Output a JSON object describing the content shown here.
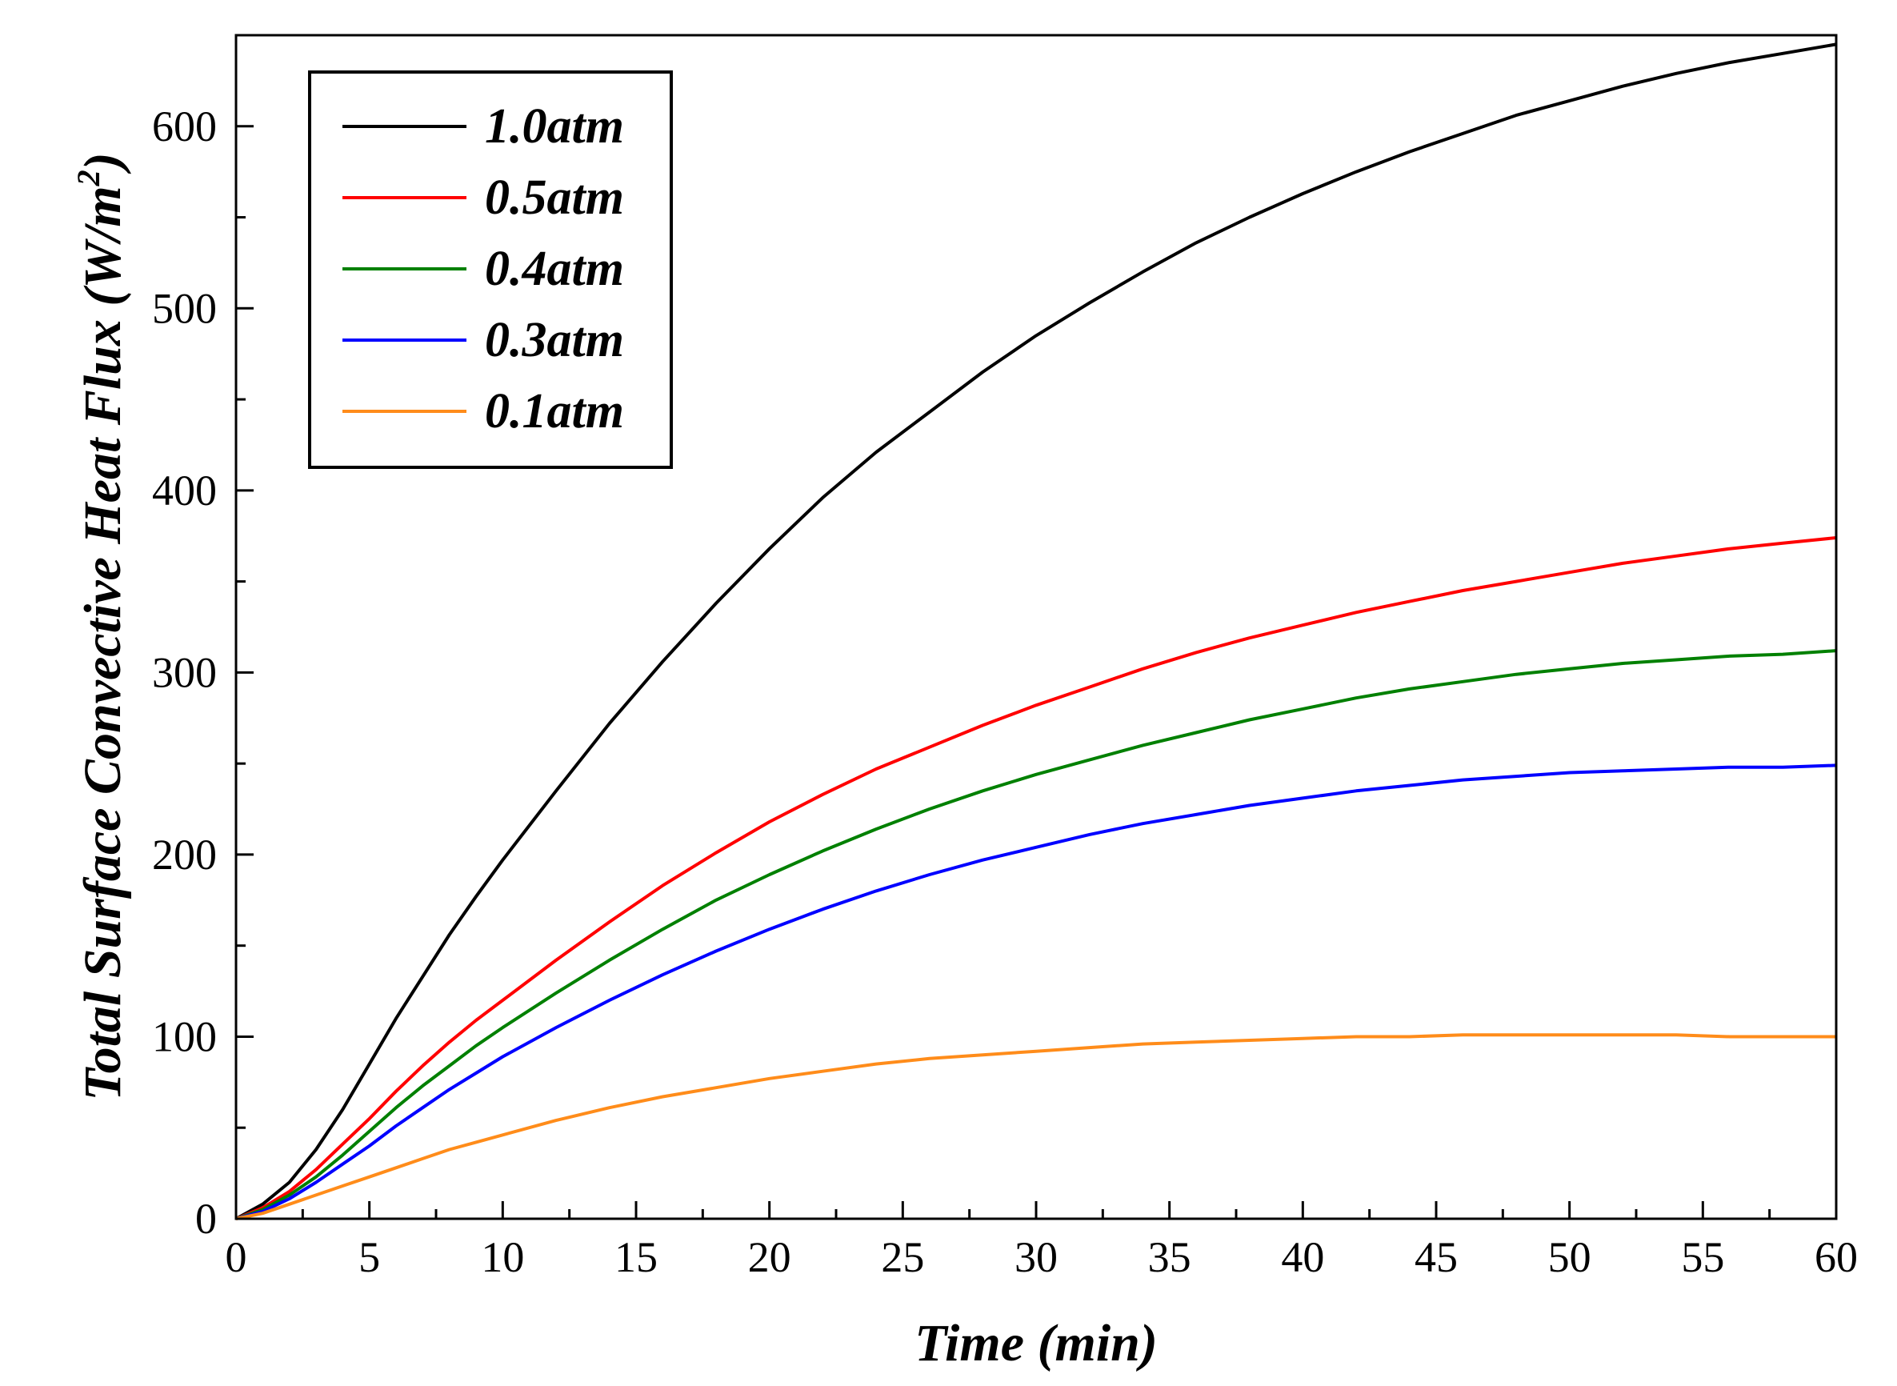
{
  "chart_data": {
    "type": "line",
    "title": "",
    "xlabel": "Time (min)",
    "ylabel_main": "Total Surface Convective Heat Flux (W/m",
    "ylabel_sup": "2",
    "ylabel_close": ")",
    "xlim": [
      0,
      60
    ],
    "ylim": [
      0,
      650
    ],
    "xticks": [
      0,
      5,
      10,
      15,
      20,
      25,
      30,
      35,
      40,
      45,
      50,
      55,
      60
    ],
    "xtick_labels": [
      "0",
      "5",
      "10",
      "15",
      "20",
      "25",
      "30",
      "35",
      "40",
      "45",
      "50",
      "55",
      "60"
    ],
    "yticks": [
      0,
      100,
      200,
      300,
      400,
      500,
      600
    ],
    "ytick_labels": [
      "0",
      "100",
      "200",
      "300",
      "400",
      "500",
      "600"
    ],
    "grid": false,
    "legend_position": "top-left",
    "series": [
      {
        "name": "1.0atm",
        "color": "#000000",
        "x": [
          0,
          1,
          2,
          3,
          4,
          5,
          6,
          7,
          8,
          9,
          10,
          12,
          14,
          16,
          18,
          20,
          22,
          24,
          26,
          28,
          30,
          32,
          34,
          36,
          38,
          40,
          42,
          44,
          46,
          48,
          50,
          52,
          54,
          56,
          58,
          60
        ],
        "y": [
          0,
          8,
          20,
          38,
          60,
          85,
          110,
          133,
          156,
          177,
          197,
          235,
          272,
          306,
          338,
          368,
          396,
          421,
          443,
          465,
          485,
          503,
          520,
          536,
          550,
          563,
          575,
          586,
          596,
          606,
          614,
          622,
          629,
          635,
          640,
          645
        ]
      },
      {
        "name": "0.5atm",
        "color": "#ff0000",
        "x": [
          0,
          1,
          2,
          3,
          4,
          5,
          6,
          7,
          8,
          9,
          10,
          12,
          14,
          16,
          18,
          20,
          22,
          24,
          26,
          28,
          30,
          32,
          34,
          36,
          38,
          40,
          42,
          44,
          46,
          48,
          50,
          52,
          54,
          56,
          58,
          60
        ],
        "y": [
          0,
          6,
          15,
          27,
          41,
          55,
          70,
          84,
          97,
          109,
          120,
          142,
          163,
          183,
          201,
          218,
          233,
          247,
          259,
          271,
          282,
          292,
          302,
          311,
          319,
          326,
          333,
          339,
          345,
          350,
          355,
          360,
          364,
          368,
          371,
          374
        ]
      },
      {
        "name": "0.4atm",
        "color": "#008000",
        "x": [
          0,
          1,
          2,
          3,
          4,
          5,
          6,
          7,
          8,
          9,
          10,
          12,
          14,
          16,
          18,
          20,
          22,
          24,
          26,
          28,
          30,
          32,
          34,
          36,
          38,
          40,
          42,
          44,
          46,
          48,
          50,
          52,
          54,
          56,
          58,
          60
        ],
        "y": [
          0,
          5,
          13,
          23,
          35,
          48,
          61,
          73,
          84,
          95,
          105,
          124,
          142,
          159,
          175,
          189,
          202,
          214,
          225,
          235,
          244,
          252,
          260,
          267,
          274,
          280,
          286,
          291,
          295,
          299,
          302,
          305,
          307,
          309,
          310,
          312
        ]
      },
      {
        "name": "0.3atm",
        "color": "#0000ff",
        "x": [
          0,
          1,
          2,
          3,
          4,
          5,
          6,
          7,
          8,
          9,
          10,
          12,
          14,
          16,
          18,
          20,
          22,
          24,
          26,
          28,
          30,
          32,
          34,
          36,
          38,
          40,
          42,
          44,
          46,
          48,
          50,
          52,
          54,
          56,
          58,
          60
        ],
        "y": [
          0,
          4,
          11,
          20,
          30,
          40,
          51,
          61,
          71,
          80,
          89,
          105,
          120,
          134,
          147,
          159,
          170,
          180,
          189,
          197,
          204,
          211,
          217,
          222,
          227,
          231,
          235,
          238,
          241,
          243,
          245,
          246,
          247,
          248,
          248,
          249
        ]
      },
      {
        "name": "0.1atm",
        "color": "#ff8c1a",
        "x": [
          0,
          1,
          2,
          3,
          4,
          5,
          6,
          7,
          8,
          9,
          10,
          12,
          14,
          16,
          18,
          20,
          22,
          24,
          26,
          28,
          30,
          32,
          34,
          36,
          38,
          40,
          42,
          44,
          46,
          48,
          50,
          52,
          54,
          56,
          58,
          60
        ],
        "y": [
          0,
          3,
          8,
          13,
          18,
          23,
          28,
          33,
          38,
          42,
          46,
          54,
          61,
          67,
          72,
          77,
          81,
          85,
          88,
          90,
          92,
          94,
          96,
          97,
          98,
          99,
          100,
          100,
          101,
          101,
          101,
          101,
          101,
          100,
          100,
          100
        ]
      }
    ]
  }
}
